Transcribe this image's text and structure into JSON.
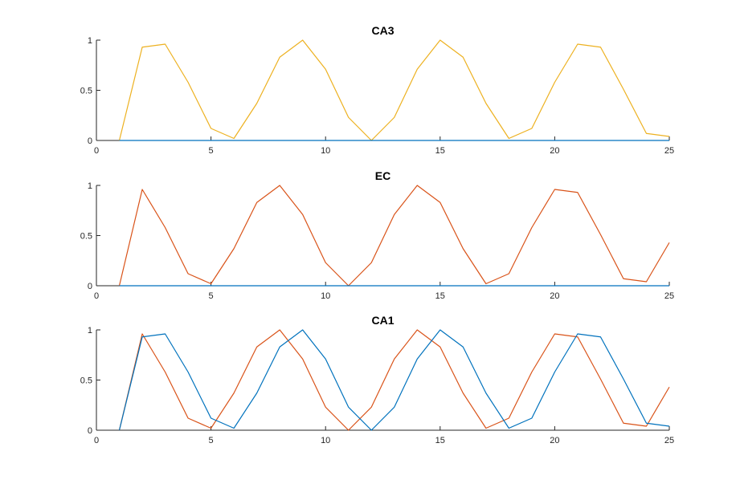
{
  "chart_data": [
    {
      "type": "line",
      "title": "CA3",
      "xlabel": "",
      "ylabel": "",
      "xlim": [
        0,
        25
      ],
      "ylim": [
        0,
        1
      ],
      "xticks": [
        0,
        5,
        10,
        15,
        20,
        25
      ],
      "yticks": [
        0,
        0.5,
        1
      ],
      "grid": false,
      "legend": "none",
      "x": [
        1,
        2,
        3,
        4,
        5,
        6,
        7,
        8,
        9,
        10,
        11,
        12,
        13,
        14,
        15,
        16,
        17,
        18,
        19,
        20,
        21,
        22,
        23,
        24,
        25
      ],
      "series": [
        {
          "color": "#EDB120",
          "values": [
            0,
            0.93,
            0.96,
            0.58,
            0.12,
            0.02,
            0.37,
            0.83,
            1.0,
            0.71,
            0.23,
            0,
            0.23,
            0.71,
            1.0,
            0.83,
            0.37,
            0.02,
            0.12,
            0.58,
            0.96,
            0.93,
            0.51,
            0.07,
            0.04
          ]
        },
        {
          "color": "#0072BD",
          "values": [
            0,
            0,
            0,
            0,
            0,
            0,
            0,
            0,
            0,
            0,
            0,
            0,
            0,
            0,
            0,
            0,
            0,
            0,
            0,
            0,
            0,
            0,
            0,
            0,
            0
          ]
        }
      ]
    },
    {
      "type": "line",
      "title": "EC",
      "xlabel": "",
      "ylabel": "",
      "xlim": [
        0,
        25
      ],
      "ylim": [
        0,
        1
      ],
      "xticks": [
        0,
        5,
        10,
        15,
        20,
        25
      ],
      "yticks": [
        0,
        0.5,
        1
      ],
      "grid": false,
      "legend": "none",
      "x": [
        1,
        2,
        3,
        4,
        5,
        6,
        7,
        8,
        9,
        10,
        11,
        12,
        13,
        14,
        15,
        16,
        17,
        18,
        19,
        20,
        21,
        22,
        23,
        24,
        25
      ],
      "series": [
        {
          "color": "#D95319",
          "values": [
            0,
            0.96,
            0.58,
            0.12,
            0.02,
            0.37,
            0.83,
            1.0,
            0.71,
            0.23,
            0,
            0.23,
            0.71,
            1.0,
            0.83,
            0.37,
            0.02,
            0.12,
            0.58,
            0.96,
            0.93,
            0.51,
            0.07,
            0.04,
            0.43
          ]
        },
        {
          "color": "#0072BD",
          "values": [
            0,
            0,
            0,
            0,
            0,
            0,
            0,
            0,
            0,
            0,
            0,
            0,
            0,
            0,
            0,
            0,
            0,
            0,
            0,
            0,
            0,
            0,
            0,
            0,
            0
          ]
        }
      ]
    },
    {
      "type": "line",
      "title": "CA1",
      "xlabel": "",
      "ylabel": "",
      "xlim": [
        0,
        25
      ],
      "ylim": [
        0,
        1
      ],
      "xticks": [
        0,
        5,
        10,
        15,
        20,
        25
      ],
      "yticks": [
        0,
        0.5,
        1
      ],
      "grid": false,
      "legend": "none",
      "x": [
        1,
        2,
        3,
        4,
        5,
        6,
        7,
        8,
        9,
        10,
        11,
        12,
        13,
        14,
        15,
        16,
        17,
        18,
        19,
        20,
        21,
        22,
        23,
        24,
        25
      ],
      "series": [
        {
          "color": "#D95319",
          "values": [
            0,
            0.96,
            0.58,
            0.12,
            0.02,
            0.37,
            0.83,
            1.0,
            0.71,
            0.23,
            0,
            0.23,
            0.71,
            1.0,
            0.83,
            0.37,
            0.02,
            0.12,
            0.58,
            0.96,
            0.93,
            0.51,
            0.07,
            0.04,
            0.43
          ]
        },
        {
          "color": "#0072BD",
          "values": [
            0,
            0.93,
            0.96,
            0.58,
            0.12,
            0.02,
            0.37,
            0.83,
            1.0,
            0.71,
            0.23,
            0,
            0.23,
            0.71,
            1.0,
            0.83,
            0.37,
            0.02,
            0.12,
            0.58,
            0.96,
            0.93,
            0.51,
            0.07,
            0.04
          ]
        }
      ]
    }
  ]
}
